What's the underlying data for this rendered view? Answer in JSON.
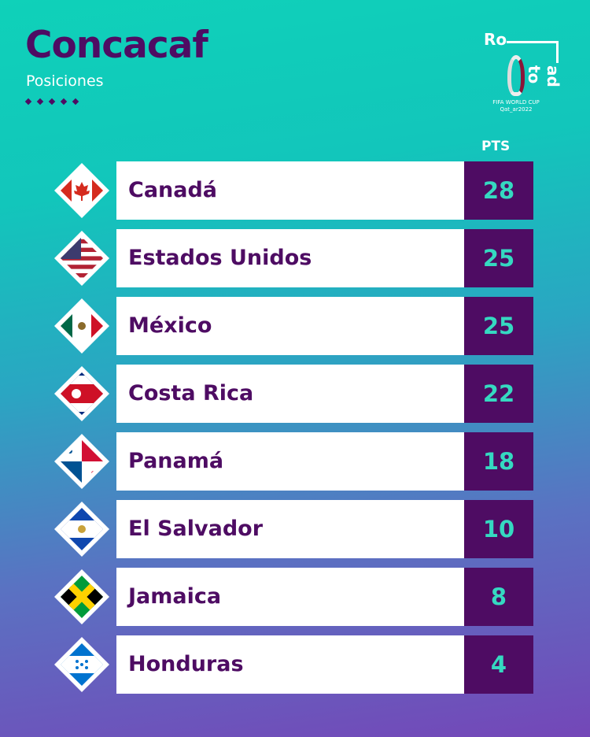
{
  "header": {
    "title": "Concacaf",
    "subtitle": "Posiciones"
  },
  "logo": {
    "text_top": "Ro",
    "text_side": "ad to",
    "caption_1": "FIFA WORLD CUP",
    "caption_2": "Qat_ar2022"
  },
  "columns": {
    "points": "PTS"
  },
  "colors": {
    "name_text": "#4e0c63",
    "points_bg": "#4e0c63",
    "points_text": "#35d9c1"
  },
  "standings": [
    {
      "team": "Canadá",
      "pts": "28",
      "flag": "canada-flag"
    },
    {
      "team": "Estados Unidos",
      "pts": "25",
      "flag": "usa-flag"
    },
    {
      "team": "México",
      "pts": "25",
      "flag": "mexico-flag"
    },
    {
      "team": "Costa Rica",
      "pts": "22",
      "flag": "costa-rica-flag"
    },
    {
      "team": "Panamá",
      "pts": "18",
      "flag": "panama-flag"
    },
    {
      "team": "El Salvador",
      "pts": "10",
      "flag": "el-salvador-flag"
    },
    {
      "team": "Jamaica",
      "pts": "8",
      "flag": "jamaica-flag"
    },
    {
      "team": "Honduras",
      "pts": "4",
      "flag": "honduras-flag"
    }
  ]
}
